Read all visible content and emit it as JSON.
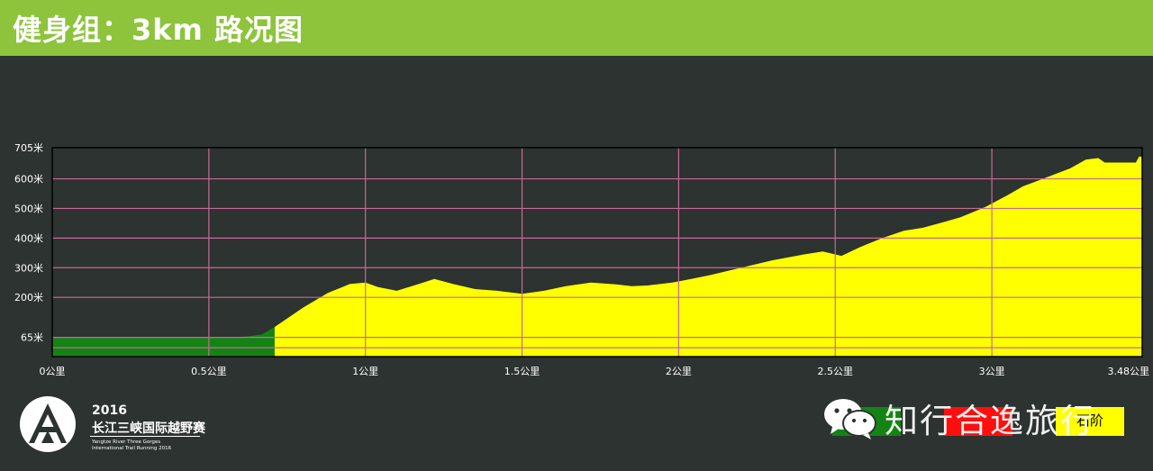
{
  "page": {
    "title": "健身组：3km  路况图"
  },
  "chart_data": {
    "type": "area",
    "x_unit": "公里",
    "x_ticks": [
      {
        "value": 0,
        "label": "0公里"
      },
      {
        "value": 0.5,
        "label": "0.5公里"
      },
      {
        "value": 1,
        "label": "1公里"
      },
      {
        "value": 1.5,
        "label": "1.5公里"
      },
      {
        "value": 2,
        "label": "2公里"
      },
      {
        "value": 2.5,
        "label": "2.5公里"
      },
      {
        "value": 3,
        "label": "3公里"
      },
      {
        "value": 3.48,
        "label": "3.48公里"
      }
    ],
    "y_ticks": [
      {
        "value": 65,
        "label": "65米"
      },
      {
        "value": 200,
        "label": "200米"
      },
      {
        "value": 300,
        "label": "300米"
      },
      {
        "value": 400,
        "label": "400米"
      },
      {
        "value": 500,
        "label": "500米"
      },
      {
        "value": 600,
        "label": "600米"
      },
      {
        "value": 705,
        "label": "705米"
      }
    ],
    "xlim": [
      0,
      3.48
    ],
    "ylim": [
      0,
      705
    ],
    "grid": true,
    "colors": {
      "plot_bg": "#2c3331",
      "grid": "#c86a93",
      "axis": "#000000",
      "tick_text": "#ffffff"
    },
    "segments": [
      {
        "legend_index": 0,
        "points": [
          [
            0,
            65
          ],
          [
            0.57,
            65
          ],
          [
            0.62,
            68
          ],
          [
            0.67,
            75
          ],
          [
            0.71,
            100
          ]
        ]
      },
      {
        "legend_index": 2,
        "points": [
          [
            0.71,
            100
          ],
          [
            0.8,
            165
          ],
          [
            0.88,
            215
          ],
          [
            0.95,
            245
          ],
          [
            1.0,
            250
          ],
          [
            1.04,
            235
          ],
          [
            1.1,
            222
          ],
          [
            1.17,
            245
          ],
          [
            1.22,
            262
          ],
          [
            1.28,
            245
          ],
          [
            1.35,
            228
          ],
          [
            1.42,
            222
          ],
          [
            1.5,
            212
          ],
          [
            1.57,
            222
          ],
          [
            1.64,
            238
          ],
          [
            1.72,
            250
          ],
          [
            1.8,
            244
          ],
          [
            1.85,
            238
          ],
          [
            1.9,
            240
          ],
          [
            1.98,
            250
          ],
          [
            2.04,
            262
          ],
          [
            2.1,
            275
          ],
          [
            2.2,
            300
          ],
          [
            2.3,
            325
          ],
          [
            2.4,
            345
          ],
          [
            2.46,
            355
          ],
          [
            2.52,
            340
          ],
          [
            2.58,
            370
          ],
          [
            2.65,
            400
          ],
          [
            2.72,
            425
          ],
          [
            2.78,
            435
          ],
          [
            2.85,
            455
          ],
          [
            2.9,
            470
          ],
          [
            2.98,
            505
          ],
          [
            3.05,
            545
          ],
          [
            3.1,
            575
          ],
          [
            3.15,
            595
          ],
          [
            3.2,
            615
          ],
          [
            3.25,
            635
          ],
          [
            3.3,
            665
          ],
          [
            3.34,
            670
          ],
          [
            3.36,
            655
          ],
          [
            3.46,
            655
          ],
          [
            3.47,
            675
          ],
          [
            3.48,
            675
          ]
        ]
      }
    ]
  },
  "legend": [
    {
      "label": "",
      "color": "#138414"
    },
    {
      "label": "",
      "color": "#ff0e0e"
    },
    {
      "label": "石阶",
      "color": "#ffff00"
    }
  ],
  "logo": {
    "year": "2016",
    "name": "长江三峡国际越野赛",
    "en_line1": "Yangtze River Three Gorges",
    "en_line2": "International Trail Running 2016"
  },
  "watermark": {
    "text": "知行合逸旅行"
  }
}
